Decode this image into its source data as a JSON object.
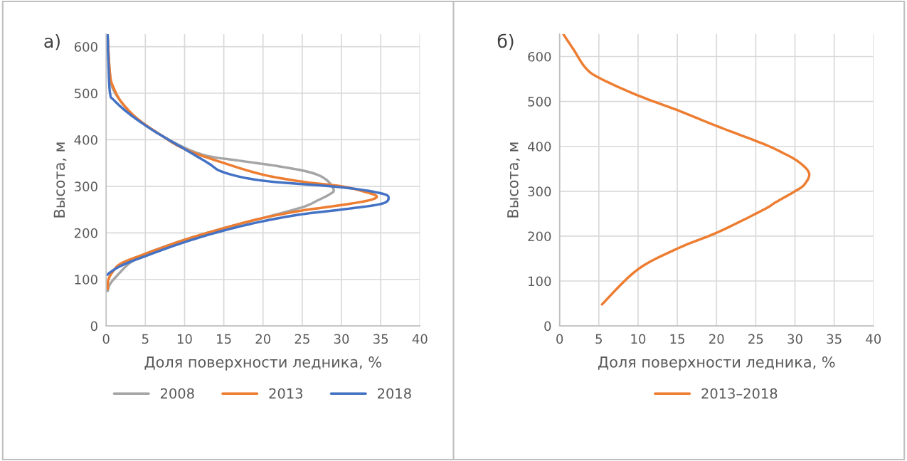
{
  "chart_data": [
    {
      "type": "line",
      "annotations": [
        "а)"
      ],
      "xlabel": "Доля поверхности ледника, %",
      "ylabel": "Высота, м",
      "xlim": [
        0,
        40
      ],
      "xticks": [
        0,
        5,
        10,
        15,
        20,
        25,
        30,
        35,
        40
      ],
      "ylim": [
        0,
        627
      ],
      "yticks": [
        0,
        100,
        200,
        300,
        400,
        500,
        600
      ],
      "grid": true,
      "legend": "bottom",
      "marker": "none",
      "line_style": "solid",
      "series": [
        {
          "name": "2008",
          "color": "#a5a5a5",
          "x": [
            0.2,
            0.5,
            1,
            3,
            6,
            10,
            13,
            17,
            22,
            26,
            28,
            29,
            28.5,
            27,
            25,
            20,
            15,
            10,
            5,
            3,
            1.5,
            0.5,
            0.2
          ],
          "values": [
            620,
            540,
            505,
            460,
            420,
            383,
            365,
            355,
            343,
            330,
            315,
            293,
            283,
            270,
            255,
            232,
            210,
            185,
            155,
            135,
            110,
            90,
            75
          ]
        },
        {
          "name": "2013",
          "color": "#ed7d31",
          "x": [
            0.2,
            0.5,
            1,
            2,
            4,
            7,
            10,
            15,
            20,
            25,
            30,
            33,
            34.5,
            33,
            28,
            25,
            20,
            15,
            10,
            5,
            2,
            1,
            0.3,
            0.2
          ],
          "values": [
            620,
            540,
            510,
            480,
            445,
            410,
            380,
            350,
            325,
            310,
            300,
            288,
            278,
            268,
            255,
            248,
            232,
            210,
            185,
            155,
            135,
            120,
            100,
            80
          ]
        },
        {
          "name": "2018",
          "color": "#4472c4",
          "x": [
            0.2,
            0.3,
            0.5,
            1,
            3,
            6,
            10,
            13,
            15,
            20,
            30,
            35,
            36,
            35,
            30,
            25,
            20,
            15,
            10,
            5,
            2,
            0.5,
            0.2
          ],
          "values": [
            625,
            560,
            500,
            485,
            455,
            420,
            380,
            350,
            330,
            312,
            298,
            285,
            275,
            262,
            250,
            240,
            225,
            205,
            180,
            150,
            130,
            115,
            110
          ]
        }
      ]
    },
    {
      "type": "line",
      "annotations": [
        "б)"
      ],
      "xlabel": "Доля поверхности ледника, %",
      "ylabel": "Высота, м",
      "xlim": [
        0,
        40
      ],
      "xticks": [
        0,
        5,
        10,
        15,
        20,
        25,
        30,
        35,
        40
      ],
      "ylim": [
        0,
        650
      ],
      "yticks": [
        0,
        100,
        200,
        300,
        400,
        500,
        600
      ],
      "grid": true,
      "legend": "bottom",
      "marker": "none",
      "line_style": "solid",
      "series": [
        {
          "name": "2013–2018",
          "color": "#ed7d31",
          "x": [
            0.5,
            1.8,
            3.3,
            5.1,
            9.9,
            15.1,
            20.2,
            25.9,
            28.5,
            30.5,
            31.8,
            31.2,
            30,
            27.5,
            25.9,
            20.2,
            15.1,
            9.9,
            5.4
          ],
          "values": [
            649,
            615,
            575,
            552,
            514,
            480,
            444,
            406,
            385,
            365,
            340,
            315,
            300,
            275,
            258,
            209,
            173,
            125,
            48
          ]
        }
      ]
    }
  ]
}
